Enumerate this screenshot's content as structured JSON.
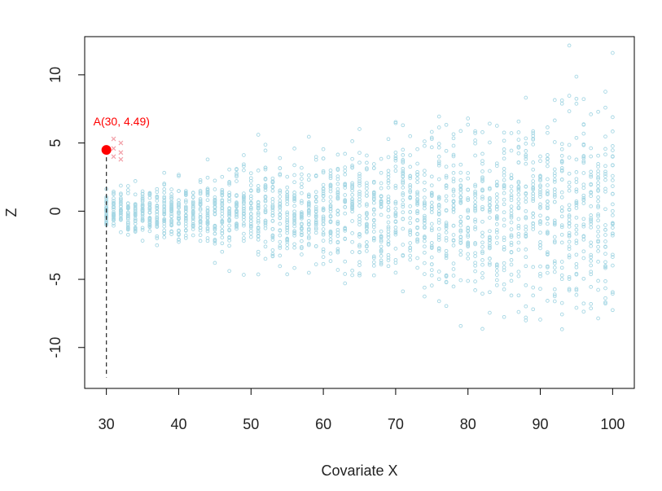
{
  "chart_data": {
    "type": "scatter",
    "title": "",
    "xlabel": "Covariate X",
    "ylabel": "Z",
    "xlim": [
      27,
      103
    ],
    "ylim": [
      -13,
      12.8
    ],
    "xticks": [
      30,
      40,
      50,
      60,
      70,
      80,
      90,
      100
    ],
    "yticks": [
      -10,
      -5,
      0,
      5,
      10
    ],
    "grid": false,
    "legend": "none",
    "x_range": [
      30,
      100
    ],
    "n_points_per_x": 30,
    "spread_note": "Z ~ Normal(0, sd) with sd growing from about 0.6 at X=30 to about 4 at X=100",
    "series": [
      {
        "style": "open-circle",
        "color": "#a6d7e4"
      }
    ],
    "highlight": {
      "label": "A(30, 4.49)",
      "x": 30,
      "y": 4.49,
      "color": "#ff0000",
      "dashed_to_y": -12.2
    },
    "crosses": {
      "color": "#f2a0a8",
      "points": [
        {
          "x": 31,
          "y": 5.3
        },
        {
          "x": 31,
          "y": 4.6
        },
        {
          "x": 31,
          "y": 4.0
        },
        {
          "x": 32,
          "y": 5.0
        },
        {
          "x": 32,
          "y": 4.3
        },
        {
          "x": 32,
          "y": 3.8
        }
      ]
    }
  }
}
